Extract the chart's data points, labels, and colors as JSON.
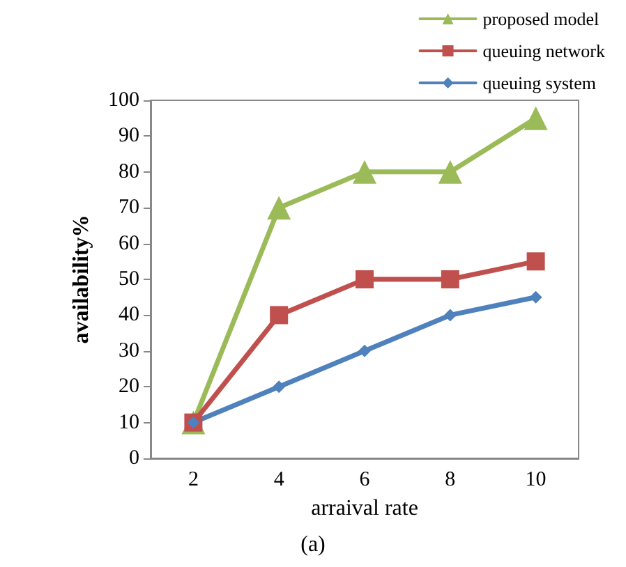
{
  "chart_data": {
    "type": "line",
    "xlabel": "arraival rate",
    "ylabel": "availability%",
    "categories": [
      "2",
      "4",
      "6",
      "8",
      "10"
    ],
    "series": [
      {
        "name": "proposed model",
        "color": "#9bbb59",
        "marker": "triangle",
        "values": [
          10,
          70,
          80,
          80,
          95
        ]
      },
      {
        "name": "queuing network",
        "color": "#c0504d",
        "marker": "square",
        "values": [
          10,
          40,
          50,
          50,
          55
        ]
      },
      {
        "name": "queuing system",
        "color": "#4f81bd",
        "marker": "diamond",
        "values": [
          10,
          20,
          30,
          40,
          45
        ]
      }
    ],
    "ylim": [
      0,
      100
    ],
    "yticks": [
      0,
      10,
      20,
      30,
      40,
      50,
      60,
      70,
      80,
      90,
      100
    ],
    "grid": false,
    "legend": "top right",
    "line_style": "solid",
    "annotations": [
      "(a)"
    ]
  }
}
